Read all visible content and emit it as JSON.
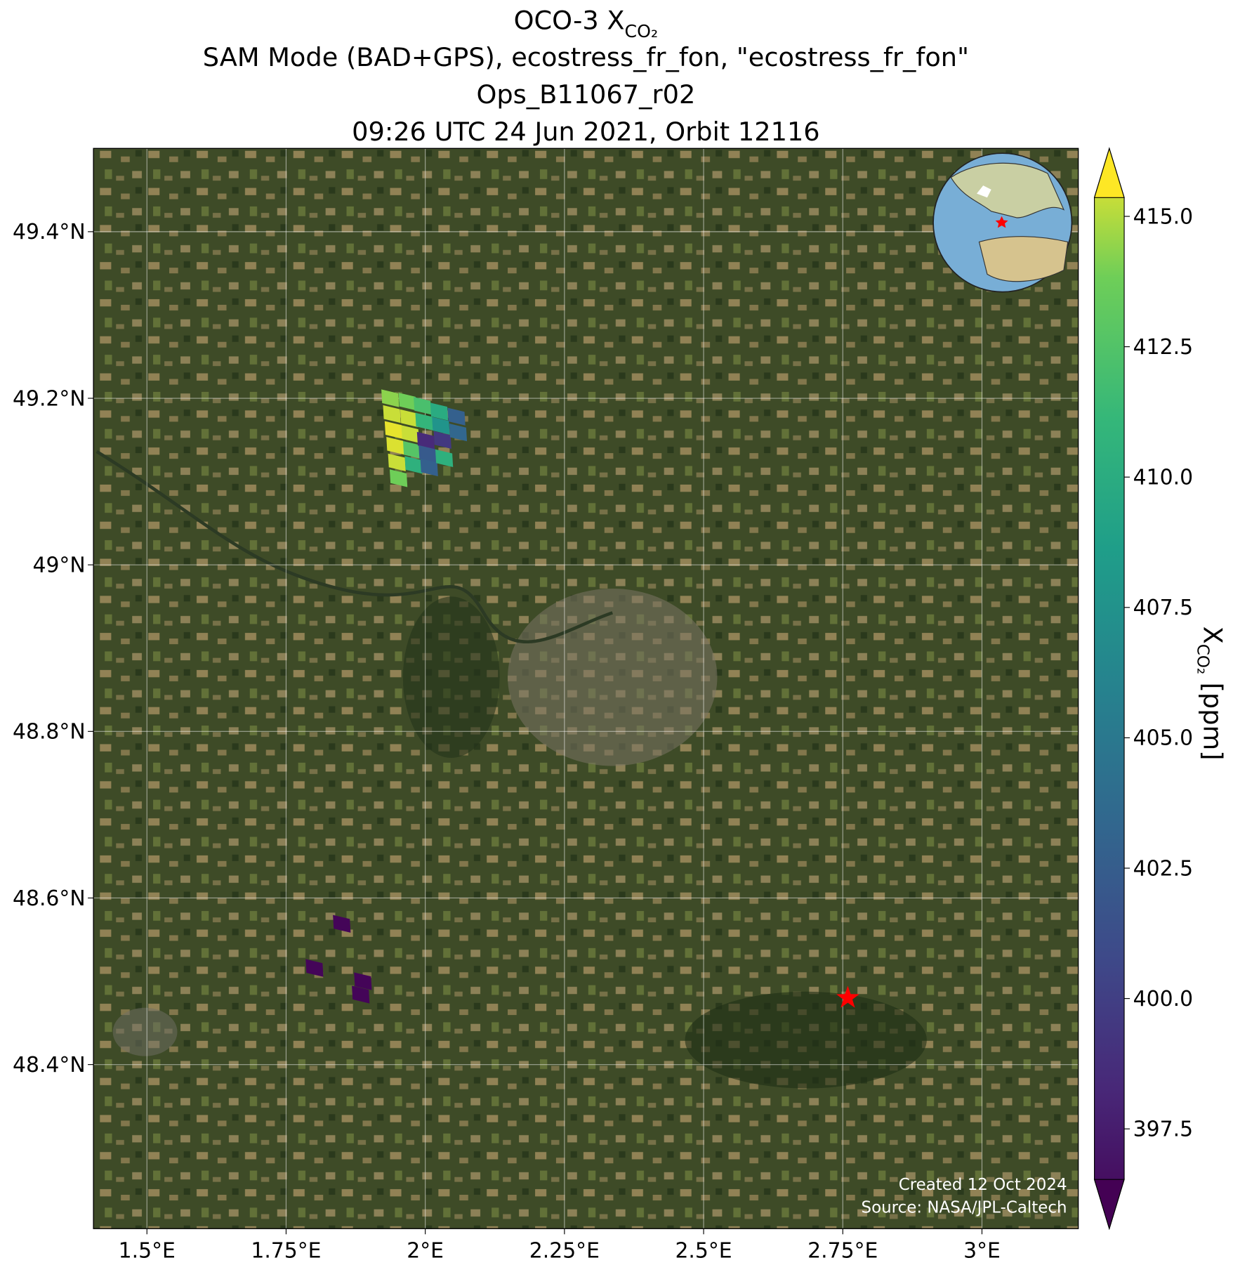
{
  "chart_data": {
    "type": "scatter",
    "title_main": "OCO-3 X",
    "title_subscript": "CO₂",
    "subtitle": [
      "SAM Mode (BAD+GPS), ecostress_fr_fon, \"ecostress_fr_fon\"",
      "Ops_B11067_r02",
      "09:26 UTC 24 Jun 2021, Orbit 12116"
    ],
    "x": [
      1.937,
      1.94,
      1.943,
      1.946,
      1.949,
      1.952,
      1.968,
      1.971,
      1.973,
      1.976,
      1.979,
      1.995,
      1.998,
      2.001,
      2.004,
      2.007,
      2.025,
      2.028,
      2.031,
      2.034,
      2.056,
      2.059,
      1.85,
      1.801,
      1.888,
      1.884
    ],
    "values": [
      49.2,
      49.181,
      49.162,
      49.143,
      49.123,
      49.104,
      49.196,
      49.176,
      49.157,
      49.138,
      49.12,
      49.191,
      49.172,
      49.149,
      49.133,
      49.117,
      49.184,
      49.167,
      49.15,
      49.128,
      49.178,
      49.159,
      48.569,
      48.516,
      48.5,
      48.484
    ],
    "color_values": [
      413.5,
      414.5,
      415,
      414.8,
      414.5,
      413,
      413,
      414.5,
      414.5,
      412,
      410,
      411.5,
      410.5,
      399,
      402.5,
      403,
      409.5,
      407.5,
      400,
      410,
      403,
      403.5,
      396.8,
      396.8,
      396.8,
      396.8
    ],
    "target": {
      "lon": 2.759,
      "lat": 48.48
    },
    "xlim": [
      1.404,
      3.173
    ],
    "ylim": [
      48.203,
      49.5
    ],
    "xticks": [
      {
        "value": 1.5,
        "label": "1.5°E"
      },
      {
        "value": 1.75,
        "label": "1.75°E"
      },
      {
        "value": 2,
        "label": "2°E"
      },
      {
        "value": 2.25,
        "label": "2.25°E"
      },
      {
        "value": 2.5,
        "label": "2.5°E"
      },
      {
        "value": 2.75,
        "label": "2.75°E"
      },
      {
        "value": 3,
        "label": "3°E"
      }
    ],
    "yticks": [
      {
        "value": 48.4,
        "label": "48.4°N"
      },
      {
        "value": 48.6,
        "label": "48.6°N"
      },
      {
        "value": 48.8,
        "label": "48.8°N"
      },
      {
        "value": 49,
        "label": "49°N"
      },
      {
        "value": 49.2,
        "label": "49.2°N"
      },
      {
        "value": 49.4,
        "label": "49.4°N"
      }
    ],
    "grid": true,
    "colormap": "viridis",
    "clim": [
      396.53,
      415.36
    ],
    "cticks": [
      {
        "value": 397.5,
        "label": "397.5"
      },
      {
        "value": 400,
        "label": "400.0"
      },
      {
        "value": 402.5,
        "label": "402.5"
      },
      {
        "value": 405,
        "label": "405.0"
      },
      {
        "value": 407.5,
        "label": "407.5"
      },
      {
        "value": 410,
        "label": "410.0"
      },
      {
        "value": 412.5,
        "label": "412.5"
      },
      {
        "value": 415,
        "label": "415.0"
      }
    ],
    "colorbar_label": {
      "symbol": "X",
      "subscript": "CO₂",
      "unit": "[ppm]"
    },
    "credits": [
      "Created 12 Oct 2024",
      "Source: NASA/JPL-Caltech"
    ]
  }
}
